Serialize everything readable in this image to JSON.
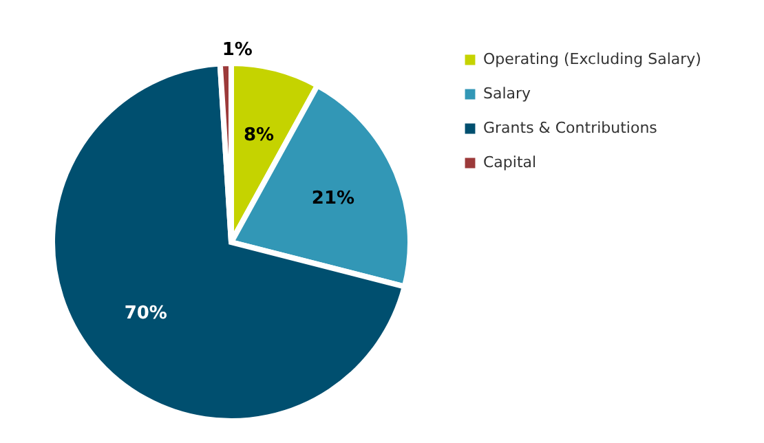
{
  "chart_data": {
    "type": "pie",
    "categories": [
      "Operating (Excluding Salary)",
      "Salary",
      "Grants & Contributions",
      "Capital"
    ],
    "values": [
      8,
      21,
      70,
      1
    ],
    "colors": [
      "#c5d300",
      "#3297b6",
      "#004f6f",
      "#9c3a3a"
    ],
    "value_labels": [
      "8%",
      "21%",
      "70%",
      "1%"
    ],
    "legend": "right"
  }
}
